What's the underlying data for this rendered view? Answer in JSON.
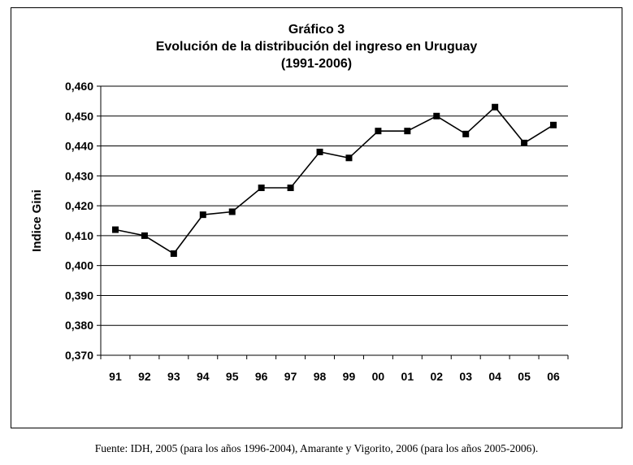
{
  "figure": {
    "title_line1": "Gráfico 3",
    "title_line2": "Evolución de la distribución del ingreso en Uruguay",
    "title_line3": "(1991-2006)"
  },
  "source_note": "Fuente: IDH, 2005 (para los años 1996-2004), Amarante y Vigorito, 2006 (para los años 2005-2006).",
  "chart_data": {
    "type": "line",
    "title": "Gráfico 3 — Evolución de la distribución del ingreso en Uruguay (1991-2006)",
    "xlabel": "",
    "ylabel": "Indice Gini",
    "categories": [
      "91",
      "92",
      "93",
      "94",
      "95",
      "96",
      "97",
      "98",
      "99",
      "00",
      "01",
      "02",
      "03",
      "04",
      "05",
      "06"
    ],
    "series": [
      {
        "name": "Indice Gini",
        "values": [
          0.412,
          0.41,
          0.404,
          0.417,
          0.418,
          0.426,
          0.426,
          0.438,
          0.436,
          0.445,
          0.445,
          0.45,
          0.444,
          0.453,
          0.441,
          0.447
        ]
      }
    ],
    "ylim": [
      0.37,
      0.46
    ],
    "yticks": [
      0.37,
      0.38,
      0.39,
      0.4,
      0.41,
      0.42,
      0.43,
      0.44,
      0.45,
      0.46
    ],
    "ytick_labels": [
      "0,370",
      "0,380",
      "0,390",
      "0,400",
      "0,410",
      "0,420",
      "0,430",
      "0,440",
      "0,450",
      "0,460"
    ],
    "grid": true,
    "marker": "square",
    "line_color": "#000000",
    "grid_color": "#000000"
  }
}
